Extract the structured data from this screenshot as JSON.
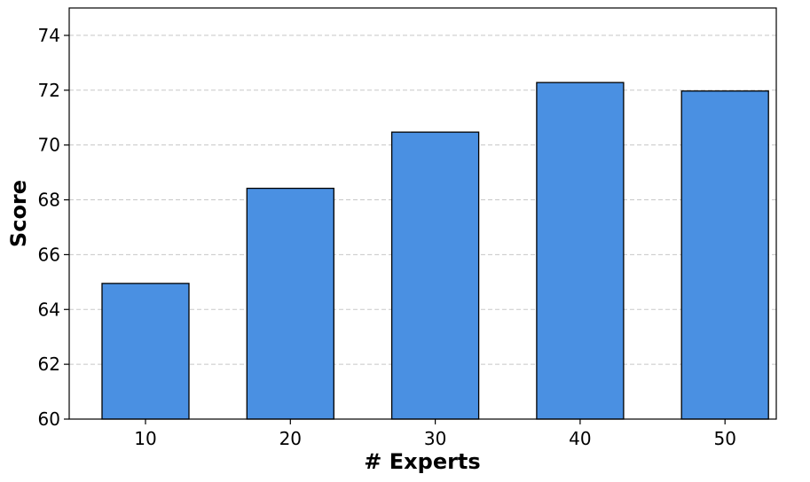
{
  "chart_data": {
    "type": "bar",
    "title": "",
    "xlabel": "# Experts",
    "ylabel": "Score",
    "categories": [
      "10",
      "20",
      "30",
      "40",
      "50"
    ],
    "values": [
      64.95,
      68.42,
      70.47,
      72.28,
      71.97
    ],
    "ylim": [
      60,
      75
    ],
    "yticks": [
      "60",
      "62",
      "64",
      "66",
      "68",
      "70",
      "72",
      "74"
    ],
    "grid": "horizontal-dashed",
    "colors": {
      "bar": "#4a90e2",
      "bar_edge": "#000000",
      "grid": "#c8c8c8"
    }
  }
}
